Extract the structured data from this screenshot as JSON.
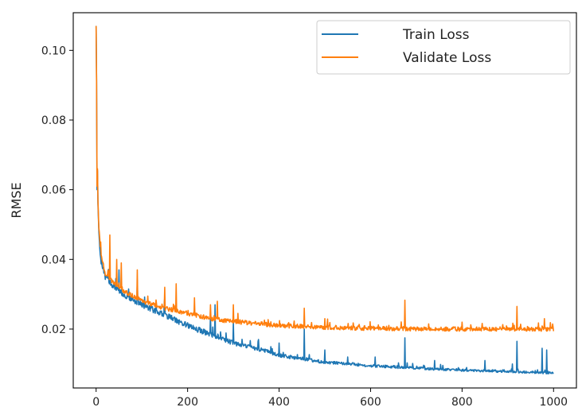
{
  "chart_data": {
    "type": "line",
    "title": "",
    "xlabel": "",
    "ylabel": "RMSE",
    "xlim": [
      -50,
      1050
    ],
    "ylim": [
      0.0031,
      0.1108
    ],
    "xticks": [
      0,
      200,
      400,
      600,
      800,
      1000
    ],
    "yticks": [
      0.02,
      0.04,
      0.06,
      0.08,
      0.1
    ],
    "xtick_labels": [
      "0",
      "200",
      "400",
      "600",
      "800",
      "1000"
    ],
    "ytick_labels": [
      "0.02",
      "0.04",
      "0.06",
      "0.08",
      "0.10"
    ],
    "grid": false,
    "legend_position": "upper-right",
    "x_range": [
      0,
      1000
    ],
    "series": [
      {
        "name": "Train Loss",
        "color": "#1f77b4",
        "curve": [
          [
            0,
            0.107
          ],
          [
            2,
            0.075
          ],
          [
            4,
            0.056
          ],
          [
            6,
            0.048
          ],
          [
            10,
            0.04
          ],
          [
            20,
            0.035
          ],
          [
            40,
            0.032
          ],
          [
            60,
            0.03
          ],
          [
            100,
            0.027
          ],
          [
            150,
            0.024
          ],
          [
            200,
            0.021
          ],
          [
            250,
            0.0185
          ],
          [
            300,
            0.016
          ],
          [
            350,
            0.0145
          ],
          [
            400,
            0.0125
          ],
          [
            450,
            0.0115
          ],
          [
            500,
            0.0105
          ],
          [
            600,
            0.0095
          ],
          [
            700,
            0.0088
          ],
          [
            800,
            0.0082
          ],
          [
            900,
            0.0078
          ],
          [
            1000,
            0.0074
          ]
        ],
        "noise": 0.0012,
        "spikes": [
          [
            2,
            0.06
          ],
          [
            50,
            0.037
          ],
          [
            90,
            0.034
          ],
          [
            150,
            0.029
          ],
          [
            250,
            0.024
          ],
          [
            260,
            0.027
          ],
          [
            300,
            0.022
          ],
          [
            355,
            0.017
          ],
          [
            400,
            0.016
          ],
          [
            455,
            0.02
          ],
          [
            500,
            0.014
          ],
          [
            550,
            0.012
          ],
          [
            610,
            0.012
          ],
          [
            675,
            0.0175
          ],
          [
            740,
            0.011
          ],
          [
            850,
            0.011
          ],
          [
            910,
            0.01
          ],
          [
            920,
            0.0165
          ],
          [
            975,
            0.0145
          ],
          [
            985,
            0.014
          ]
        ]
      },
      {
        "name": "Validate Loss",
        "color": "#ff7f0e",
        "curve": [
          [
            0,
            0.107
          ],
          [
            2,
            0.075
          ],
          [
            4,
            0.057
          ],
          [
            6,
            0.049
          ],
          [
            10,
            0.042
          ],
          [
            20,
            0.036
          ],
          [
            40,
            0.033
          ],
          [
            60,
            0.031
          ],
          [
            100,
            0.028
          ],
          [
            150,
            0.026
          ],
          [
            200,
            0.0245
          ],
          [
            250,
            0.023
          ],
          [
            300,
            0.0222
          ],
          [
            400,
            0.021
          ],
          [
            500,
            0.0205
          ],
          [
            600,
            0.0202
          ],
          [
            700,
            0.0201
          ],
          [
            800,
            0.02
          ],
          [
            900,
            0.02
          ],
          [
            1000,
            0.02
          ]
        ],
        "noise": 0.0009,
        "spikes": [
          [
            2,
            0.061
          ],
          [
            10,
            0.045
          ],
          [
            30,
            0.047
          ],
          [
            45,
            0.04
          ],
          [
            55,
            0.039
          ],
          [
            90,
            0.037
          ],
          [
            150,
            0.032
          ],
          [
            175,
            0.033
          ],
          [
            215,
            0.029
          ],
          [
            250,
            0.027
          ],
          [
            265,
            0.028
          ],
          [
            300,
            0.027
          ],
          [
            455,
            0.026
          ],
          [
            500,
            0.023
          ],
          [
            675,
            0.0283
          ],
          [
            800,
            0.022
          ],
          [
            920,
            0.0265
          ],
          [
            980,
            0.023
          ]
        ]
      }
    ]
  }
}
